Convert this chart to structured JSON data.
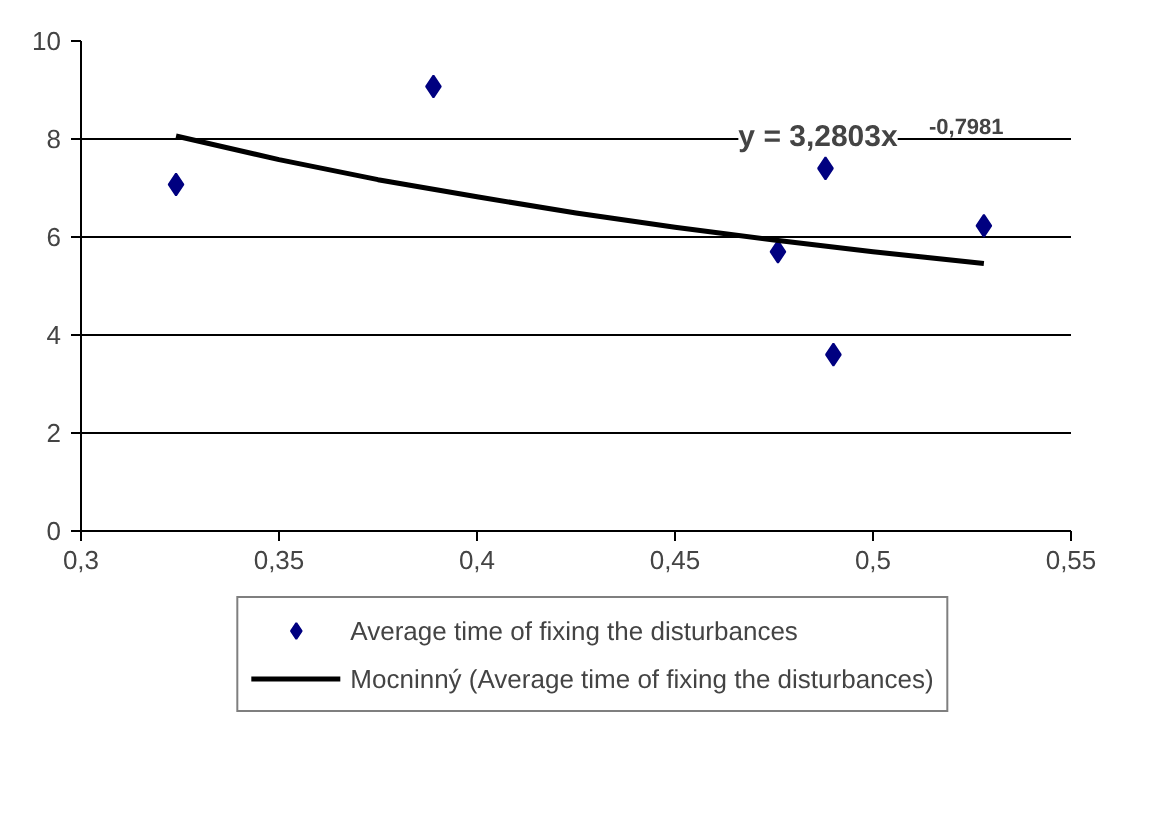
{
  "chart_data": {
    "type": "scatter",
    "series": [
      {
        "name": "Average time of fixing the disturbances",
        "color": "#000080",
        "marker": "diamond",
        "x": [
          0.324,
          0.389,
          0.476,
          0.488,
          0.49,
          0.528
        ],
        "values": [
          7.07,
          9.07,
          5.7,
          7.4,
          3.6,
          6.23
        ]
      },
      {
        "name": "Mocninný (Average time of fixing the disturbances)",
        "type": "line",
        "color": "#000000",
        "marker": "none",
        "x": [
          0.324,
          0.35,
          0.375,
          0.4,
          0.425,
          0.45,
          0.475,
          0.5,
          0.528
        ],
        "values": [
          8.06,
          7.58,
          7.17,
          6.82,
          6.49,
          6.2,
          5.94,
          5.7,
          5.46
        ]
      }
    ],
    "annotations": [
      "y = 3,2803x$^{-0,7981}$"
    ],
    "xlim": [
      0.3,
      0.55
    ],
    "xticks": [
      {
        "value": 0.3,
        "label": "0,3"
      },
      {
        "value": 0.35,
        "label": "0,35"
      },
      {
        "value": 0.4,
        "label": "0,4"
      },
      {
        "value": 0.45,
        "label": "0,45"
      },
      {
        "value": 0.5,
        "label": "0,5"
      },
      {
        "value": 0.55,
        "label": "0,55"
      }
    ],
    "ylim": [
      0,
      10
    ],
    "yticks": [
      0,
      2,
      4,
      6,
      8,
      10
    ],
    "grid": "y",
    "legend": "bottom"
  }
}
